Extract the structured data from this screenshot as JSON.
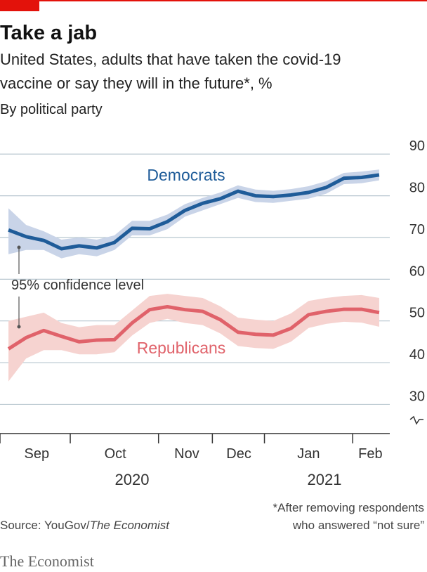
{
  "chart_data": {
    "type": "line",
    "title": "Take a jab",
    "subtitle": [
      "United States, adults that have taken the covid-19",
      "vaccine or say they will in the future*, %"
    ],
    "subtitle2": "By political party",
    "x": [
      0,
      1,
      2,
      3,
      4,
      5,
      6,
      7,
      8,
      9,
      10,
      11,
      12,
      13,
      14,
      15,
      16,
      17,
      18,
      19,
      20,
      21
    ],
    "xlim": [
      -0.48,
      21.6
    ],
    "xticks": [
      {
        "value": 1.6,
        "label": "Sep"
      },
      {
        "value": 6.05,
        "label": "Oct"
      },
      {
        "value": 10.1,
        "label": "Nov"
      },
      {
        "value": 13.05,
        "label": "Dec"
      },
      {
        "value": 17,
        "label": "Jan"
      },
      {
        "value": 20.5,
        "label": "Feb"
      }
    ],
    "xtick_marks": [
      -0.48,
      3.5,
      8.5,
      11.55,
      14.5,
      19.5
    ],
    "year_labels": [
      {
        "value": 7,
        "label": "2020"
      },
      {
        "value": 17.9,
        "label": "2021"
      }
    ],
    "ylim": [
      23,
      92.4
    ],
    "yticks": [
      30,
      40,
      50,
      60,
      70,
      80,
      90
    ],
    "grid": true,
    "series": [
      {
        "name": "Democrats",
        "color": "#1f5c99",
        "band_color": "#c9d4e8",
        "values": [
          71.8,
          70.2,
          69.3,
          67.3,
          68,
          67.5,
          68.8,
          72.2,
          72.1,
          73.8,
          76.5,
          78.2,
          79.3,
          81.1,
          80,
          79.8,
          80.2,
          80.8,
          82,
          84.2,
          84.4,
          85
        ],
        "upper": [
          77,
          73,
          71.5,
          69.5,
          70,
          69.5,
          70.5,
          74,
          74,
          75.5,
          78,
          79.5,
          80.8,
          82.5,
          81.5,
          81.2,
          81.6,
          82.3,
          83.5,
          85.5,
          85.8,
          86.3
        ],
        "lower": [
          66,
          67,
          67,
          65,
          66,
          65.5,
          67,
          70.5,
          70.5,
          72,
          75,
          76.5,
          78,
          79.5,
          78.5,
          78.3,
          78.8,
          79.3,
          80.5,
          82.8,
          83,
          83.7
        ]
      },
      {
        "name": "Republicans",
        "color": "#e0626a",
        "band_color": "#f6d3d0",
        "values": [
          43.3,
          46,
          47.7,
          46.3,
          45,
          45.4,
          45.5,
          49.5,
          52.7,
          53.4,
          52.7,
          52.3,
          50.3,
          47.3,
          46.8,
          46.6,
          48.2,
          51.5,
          52.3,
          52.8,
          52.8,
          52
        ],
        "upper": [
          50,
          51,
          52,
          49.5,
          48.5,
          49,
          49,
          52.5,
          56,
          56.5,
          56,
          55.5,
          53.5,
          50.8,
          50.3,
          50,
          51.8,
          54.8,
          55.5,
          56,
          56.2,
          55.5
        ],
        "lower": [
          35.5,
          41,
          43,
          43,
          42,
          42,
          42.5,
          46.5,
          49.5,
          50.5,
          49.5,
          49,
          47,
          44,
          43.5,
          43.3,
          45,
          48.3,
          49.3,
          49.8,
          49.6,
          48.6
        ]
      }
    ],
    "annotation": "95% confidence level",
    "source": {
      "text": "Source: YouGov/",
      "publication": "The Economist"
    },
    "footnote": [
      "*After removing respondents",
      "who answered “not sure”"
    ],
    "brand": "The Economist"
  }
}
